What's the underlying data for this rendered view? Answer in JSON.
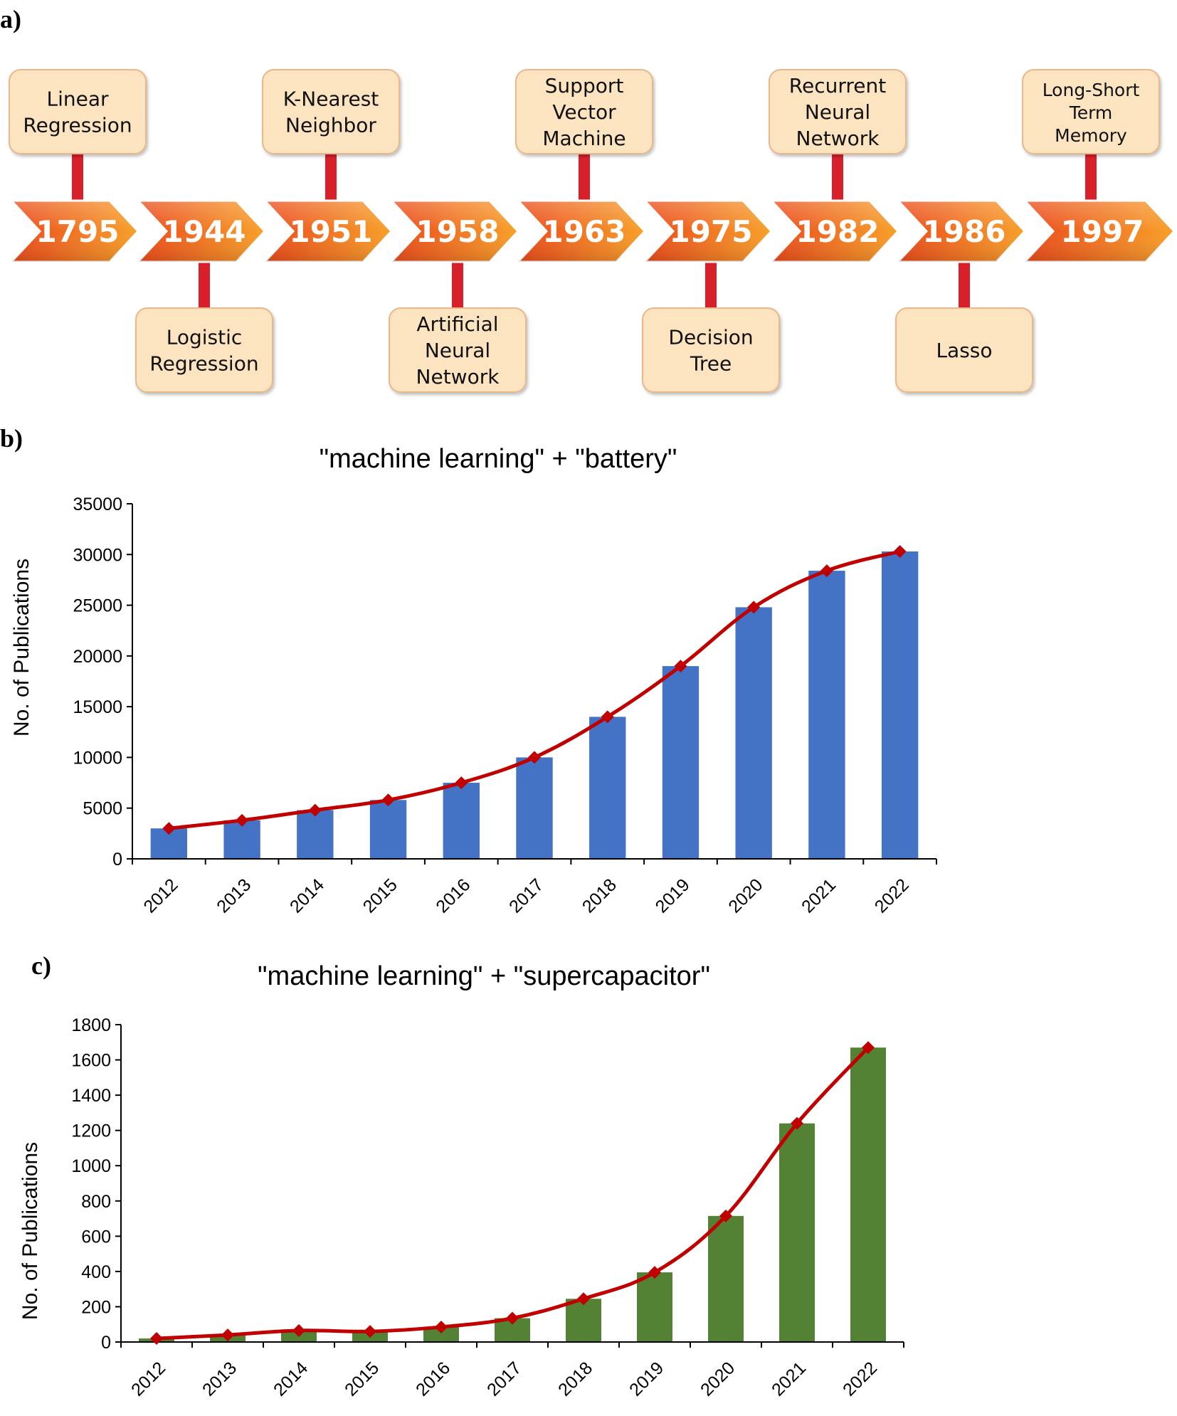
{
  "panels": {
    "a": "a)",
    "b": "b)",
    "c": "c)"
  },
  "colors": {
    "box_fill": "#fde4c0",
    "box_stroke": "#e8b88a",
    "connector": "#d8202b",
    "arrow_dark": "#ea4a1a",
    "arrow_light": "#f7a029",
    "bar_battery": "#4472c4",
    "bar_supercap": "#548235",
    "line": "#c00000"
  },
  "timeline": {
    "years": [
      "1795",
      "1944",
      "1951",
      "1958",
      "1963",
      "1975",
      "1982",
      "1986",
      "1997"
    ],
    "events": [
      {
        "year": "1795",
        "position": "top",
        "lines": [
          "Linear",
          "Regression"
        ]
      },
      {
        "year": "1944",
        "position": "bottom",
        "lines": [
          "Logistic",
          "Regression"
        ]
      },
      {
        "year": "1951",
        "position": "top",
        "lines": [
          "K-Nearest",
          "Neighbor"
        ]
      },
      {
        "year": "1958",
        "position": "bottom",
        "lines": [
          "Artificial",
          "Neural",
          "Network"
        ]
      },
      {
        "year": "1963",
        "position": "top",
        "lines": [
          "Support",
          "Vector",
          "Machine"
        ]
      },
      {
        "year": "1975",
        "position": "bottom",
        "lines": [
          "Decision",
          "Tree"
        ]
      },
      {
        "year": "1982",
        "position": "top",
        "lines": [
          "Recurrent",
          "Neural",
          "Network"
        ]
      },
      {
        "year": "1986",
        "position": "bottom",
        "lines": [
          "Lasso"
        ]
      },
      {
        "year": "1997",
        "position": "top",
        "lines": [
          "Long-Short",
          "Term",
          "Memory"
        ]
      }
    ]
  },
  "chart_data": [
    {
      "type": "bar",
      "title": "\"machine learning\" + \"battery\"",
      "xlabel": "",
      "ylabel": "No. of Publications",
      "categories": [
        "2012",
        "2013",
        "2014",
        "2015",
        "2016",
        "2017",
        "2018",
        "2019",
        "2020",
        "2021",
        "2022"
      ],
      "values": [
        3000,
        3800,
        4800,
        5800,
        7500,
        10000,
        14000,
        19000,
        24800,
        28400,
        30300
      ],
      "line_values": [
        3000,
        3800,
        4800,
        5800,
        7500,
        10000,
        14000,
        19000,
        24800,
        28400,
        30300
      ],
      "ylim": [
        0,
        35000
      ],
      "yticks": [
        0,
        5000,
        10000,
        15000,
        20000,
        25000,
        30000,
        35000
      ],
      "grid": false,
      "legend": "none"
    },
    {
      "type": "bar",
      "title": "\"machine learning\" + \"supercapacitor\"",
      "xlabel": "",
      "ylabel": "No. of Publications",
      "categories": [
        "2012",
        "2013",
        "2014",
        "2015",
        "2016",
        "2017",
        "2018",
        "2019",
        "2020",
        "2021",
        "2022"
      ],
      "values": [
        20,
        40,
        65,
        60,
        85,
        135,
        245,
        395,
        715,
        1240,
        1670
      ],
      "line_values": [
        20,
        40,
        65,
        60,
        85,
        135,
        245,
        395,
        715,
        1240,
        1670
      ],
      "ylim": [
        0,
        1800
      ],
      "yticks": [
        0,
        200,
        400,
        600,
        800,
        1000,
        1200,
        1400,
        1600,
        1800
      ],
      "grid": false,
      "legend": "none"
    }
  ]
}
